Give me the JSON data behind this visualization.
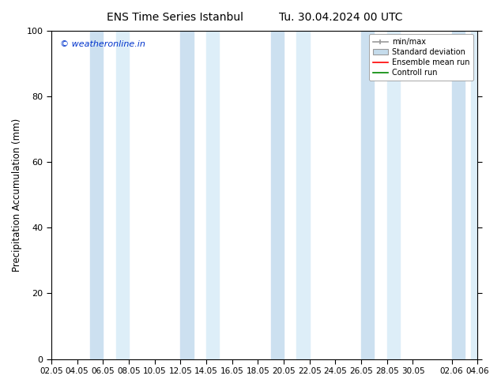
{
  "title_left": "ENS Time Series Istanbul",
  "title_right": "Tu. 30.04.2024 00 UTC",
  "ylabel": "Precipitation Accumulation (mm)",
  "ylim": [
    0,
    100
  ],
  "yticks": [
    0,
    20,
    40,
    60,
    80,
    100
  ],
  "bg_color": "#ffffff",
  "plot_bg_color": "#ffffff",
  "watermark": "© weatheronline.in",
  "watermark_color": "#0033cc",
  "x_labels": [
    "02.05",
    "04.05",
    "06.05",
    "08.05",
    "10.05",
    "12.05",
    "14.05",
    "16.05",
    "18.05",
    "20.05",
    "22.05",
    "24.05",
    "26.05",
    "28.05",
    "30.05",
    "02.06",
    "04.06"
  ],
  "x_tick_positions": [
    0,
    2,
    4,
    6,
    8,
    10,
    12,
    14,
    16,
    18,
    20,
    22,
    24,
    26,
    28,
    31,
    33
  ],
  "xlim": [
    0,
    33
  ],
  "band_color_light": "#ddeef8",
  "band_color_dark": "#cce0f0",
  "shaded_intervals": [
    [
      3,
      4
    ],
    [
      5,
      6
    ],
    [
      10,
      11
    ],
    [
      12,
      13
    ],
    [
      17,
      18
    ],
    [
      19,
      20
    ],
    [
      24,
      25
    ],
    [
      26,
      27
    ],
    [
      31,
      32
    ],
    [
      32,
      33
    ]
  ],
  "legend_minmax_color": "#999999",
  "legend_std_color": "#c5dcec",
  "legend_mean_color": "#ff0000",
  "legend_ctrl_color": "#008800",
  "num_x_points": 33
}
